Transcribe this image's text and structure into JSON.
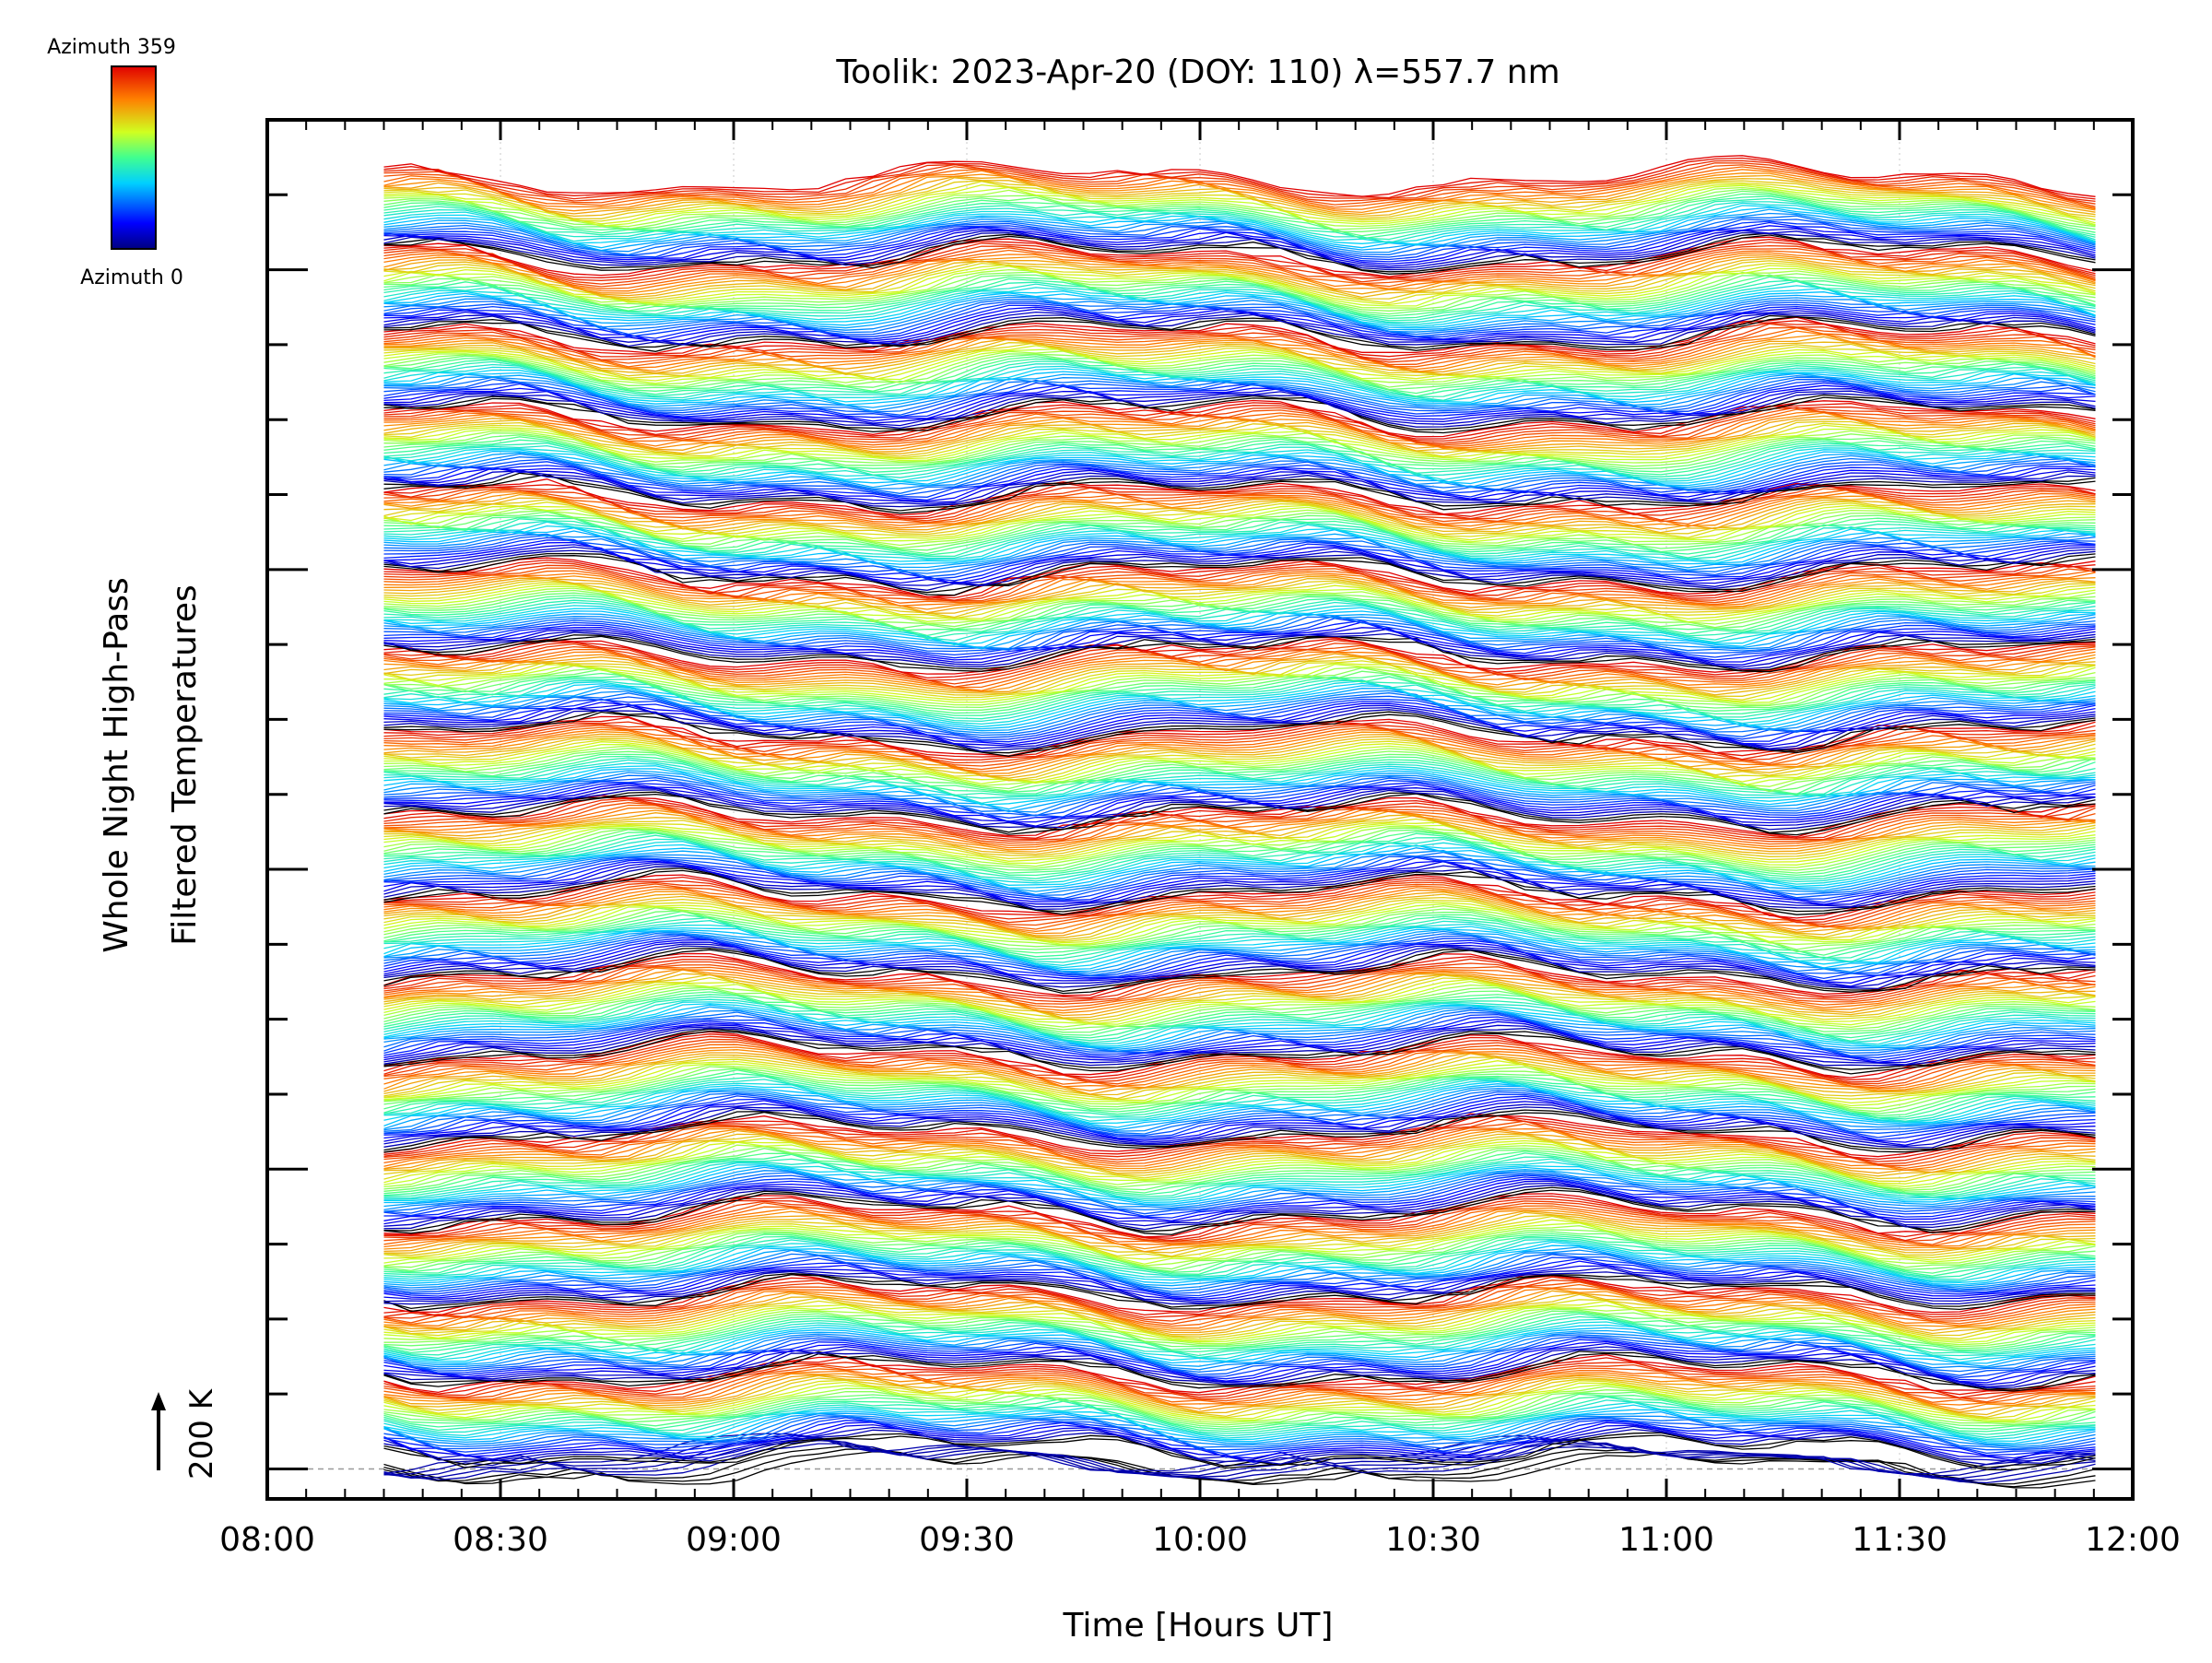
{
  "chart_data": {
    "type": "line",
    "title": "Toolik: 2023-Apr-20 (DOY: 110) λ=557.7 nm",
    "xlabel": "Time [Hours UT]",
    "ylabel_lines": [
      "Whole Night High-Pass",
      "Filtered Temperatures"
    ],
    "scale_label": "200 K",
    "x_range_hours": [
      8.0,
      12.0
    ],
    "x_ticks": [
      {
        "h": 8.0,
        "label": "08:00"
      },
      {
        "h": 8.5,
        "label": "08:30"
      },
      {
        "h": 9.0,
        "label": "09:00"
      },
      {
        "h": 9.5,
        "label": "09:30"
      },
      {
        "h": 10.0,
        "label": "10:00"
      },
      {
        "h": 10.5,
        "label": "10:30"
      },
      {
        "h": 11.0,
        "label": "11:00"
      },
      {
        "h": 11.5,
        "label": "11:30"
      },
      {
        "h": 12.0,
        "label": "12:00"
      }
    ],
    "data_time_range_hours": [
      8.25,
      11.92
    ],
    "y_range_kelvin": [
      -80,
      3600
    ],
    "y_major_tick_spacing_kelvin": 800,
    "y_minor_tick_spacing_kelvin": 200,
    "trace_offset_kelvin": 200,
    "zenith_traces": 8,
    "series_per_ring": 36,
    "colorbar": {
      "colormap": "rainbow",
      "top_label": "Azimuth 359",
      "bottom_label": "Azimuth 0",
      "min": 0,
      "max": 359
    },
    "grid": "dotted vertical at major ticks",
    "legend": "colorbar top-left"
  }
}
